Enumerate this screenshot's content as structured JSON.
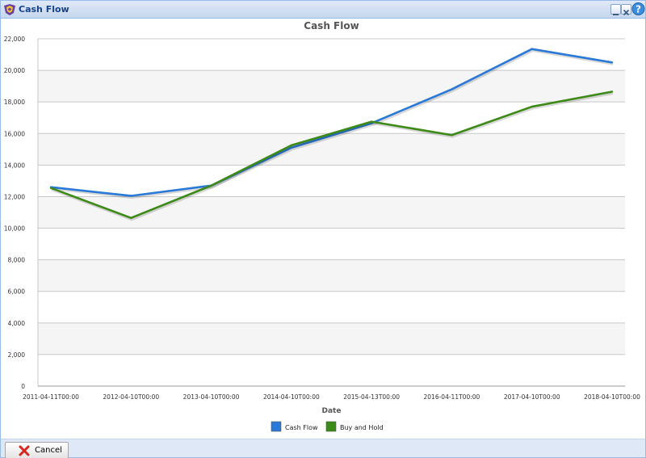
{
  "window": {
    "title": "Cash Flow",
    "icon": "app-logo-icon",
    "controls": [
      "minimize-icon",
      "close-icon",
      "help-icon"
    ]
  },
  "footer": {
    "cancel_label": "Cancel",
    "cancel_icon": "red-x-icon"
  },
  "colors": {
    "cash_flow": "#2b79d6",
    "buy_and_hold": "#3d8a18",
    "title": "#555555",
    "band": "#f5f5f5"
  },
  "chart_data": {
    "type": "line",
    "title": "Cash Flow",
    "xlabel": "Date",
    "ylabel": "",
    "categories": [
      "2011-04-11T00:00",
      "2012-04-10T00:00",
      "2013-04-10T00:00",
      "2014-04-10T00:00",
      "2015-04-13T00:00",
      "2016-04-11T00:00",
      "2017-04-10T00:00",
      "2018-04-10T00:00"
    ],
    "ylim": [
      0,
      22000
    ],
    "yticks": [
      "0",
      "2,000",
      "4,000",
      "6,000",
      "8,000",
      "10,000",
      "12,000",
      "14,000",
      "16,000",
      "18,000",
      "20,000",
      "22,000"
    ],
    "grid": true,
    "legend": "bottom-center",
    "series": [
      {
        "name": "Cash Flow",
        "values": [
          12600,
          12050,
          12700,
          15100,
          16650,
          18800,
          21350,
          20500
        ]
      },
      {
        "name": "Buy and Hold",
        "values": [
          12550,
          10650,
          12700,
          15250,
          16750,
          15900,
          17700,
          18650
        ]
      }
    ]
  }
}
